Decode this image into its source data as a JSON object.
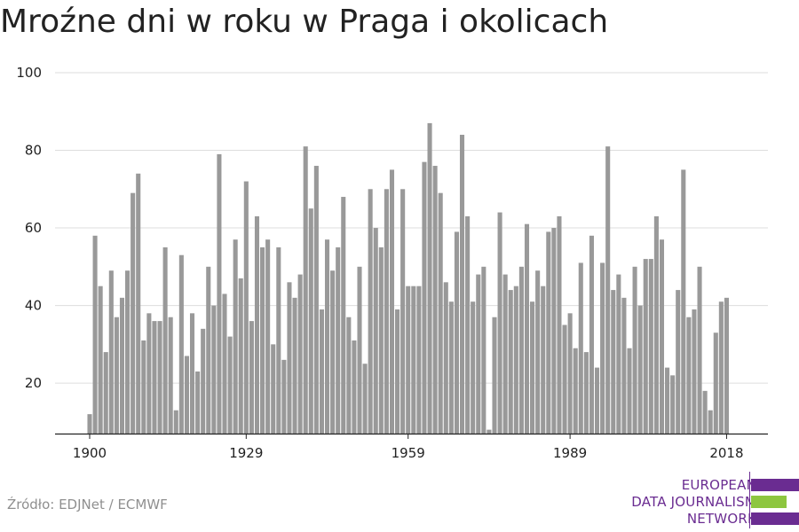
{
  "title": "Mroźne dni w roku w Praga i okolicach",
  "source": "Źródło: EDJNet / ECMWF",
  "logo": {
    "lines": [
      "EUROPEAN",
      "DATA JOURNALISM",
      "NETWORK"
    ],
    "colors": {
      "purple": "#6a2c91",
      "green": "#8dc63f"
    }
  },
  "chart_data": {
    "type": "bar",
    "title": "Mroźne dni w roku w Praga i okolicach",
    "x_start": 1900,
    "x": [
      1900,
      1901,
      1902,
      1903,
      1904,
      1905,
      1906,
      1907,
      1908,
      1909,
      1910,
      1911,
      1912,
      1913,
      1914,
      1915,
      1916,
      1917,
      1918,
      1919,
      1920,
      1921,
      1922,
      1923,
      1924,
      1925,
      1926,
      1927,
      1928,
      1929,
      1930,
      1931,
      1932,
      1933,
      1934,
      1935,
      1936,
      1937,
      1938,
      1939,
      1940,
      1941,
      1942,
      1943,
      1944,
      1945,
      1946,
      1947,
      1948,
      1949,
      1950,
      1951,
      1952,
      1953,
      1954,
      1955,
      1956,
      1957,
      1958,
      1959,
      1960,
      1961,
      1962,
      1963,
      1964,
      1965,
      1966,
      1967,
      1968,
      1969,
      1970,
      1971,
      1972,
      1973,
      1974,
      1975,
      1976,
      1977,
      1978,
      1979,
      1980,
      1981,
      1982,
      1983,
      1984,
      1985,
      1986,
      1987,
      1988,
      1989,
      1990,
      1991,
      1992,
      1993,
      1994,
      1995,
      1996,
      1997,
      1998,
      1999,
      2000,
      2001,
      2002,
      2003,
      2004,
      2005,
      2006,
      2007,
      2008,
      2009,
      2010,
      2011,
      2012,
      2013,
      2014,
      2015,
      2016,
      2017,
      2018
    ],
    "values": [
      12,
      58,
      45,
      28,
      49,
      37,
      42,
      49,
      69,
      74,
      31,
      38,
      36,
      36,
      55,
      37,
      13,
      53,
      27,
      38,
      23,
      34,
      50,
      40,
      79,
      43,
      32,
      57,
      47,
      72,
      36,
      63,
      55,
      57,
      30,
      55,
      26,
      46,
      42,
      48,
      81,
      65,
      76,
      39,
      57,
      49,
      55,
      68,
      37,
      31,
      50,
      25,
      70,
      60,
      55,
      70,
      75,
      39,
      70,
      45,
      45,
      45,
      77,
      87,
      76,
      69,
      46,
      41,
      59,
      84,
      63,
      41,
      48,
      50,
      8,
      37,
      64,
      48,
      44,
      45,
      50,
      61,
      41,
      49,
      45,
      59,
      60,
      63,
      35,
      38,
      29,
      51,
      28,
      58,
      24,
      51,
      81,
      44,
      48,
      42,
      29,
      50,
      40,
      52,
      52,
      63,
      57,
      24,
      22,
      44,
      75,
      37,
      39,
      50,
      18,
      13,
      33,
      41,
      42
    ],
    "xticks": [
      1900,
      1929,
      1959,
      1989,
      2018
    ],
    "yticks": [
      20,
      40,
      60,
      80,
      100
    ],
    "ylim": [
      7,
      100
    ],
    "color": "#999999",
    "grid": true,
    "xlabel": "",
    "ylabel": ""
  }
}
